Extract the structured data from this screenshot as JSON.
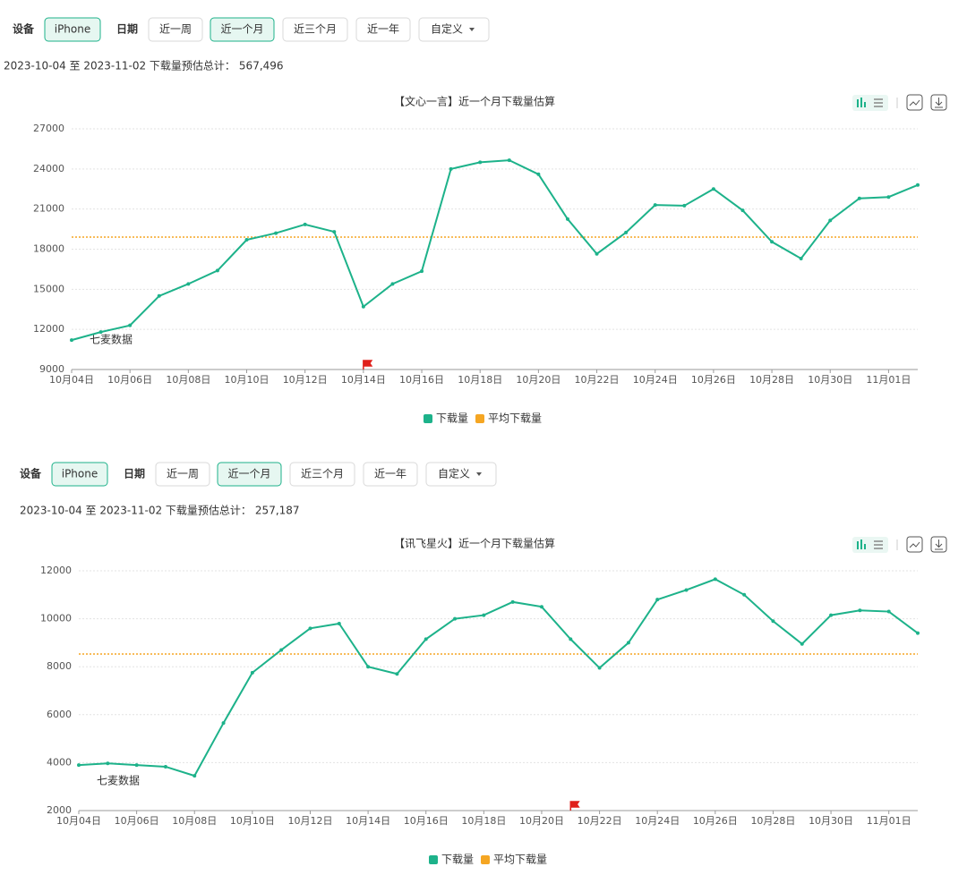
{
  "panels": [
    {
      "filters": {
        "device_label": "设备",
        "device": "iPhone",
        "date_label": "日期",
        "date_options": [
          "近一周",
          "近一个月",
          "近三个月",
          "近一年",
          "自定义"
        ],
        "selected_index": 1
      },
      "summary": {
        "range": "2023-10-04 至 2023-11-02 下载量预估总计：",
        "total": "567,496"
      }
    },
    {
      "filters": {
        "device_label": "设备",
        "device": "iPhone",
        "date_label": "日期",
        "date_options": [
          "近一周",
          "近一个月",
          "近三个月",
          "近一年",
          "自定义"
        ],
        "selected_index": 1
      },
      "summary": {
        "range": "2023-10-04 至 2023-11-02 下载量预估总计：",
        "total": "257,187"
      }
    }
  ],
  "chart_data": [
    {
      "type": "line",
      "title": "【文心一言】近一个月下载量估算",
      "watermark": "七麦数据",
      "categories": [
        "10月04日",
        null,
        "10月06日",
        null,
        "10月08日",
        null,
        "10月10日",
        null,
        "10月12日",
        null,
        "10月14日",
        null,
        "10月16日",
        null,
        "10月18日",
        null,
        "10月20日",
        null,
        "10月22日",
        null,
        "10月24日",
        null,
        "10月26日",
        null,
        "10月28日",
        null,
        "10月30日",
        null,
        "11月01日",
        null
      ],
      "series": [
        {
          "name": "下载量",
          "color": "#1db28a",
          "values": [
            11200,
            11800,
            12300,
            14500,
            15400,
            16400,
            18700,
            19200,
            19850,
            19300,
            13700,
            15400,
            16350,
            24000,
            24500,
            24650,
            23600,
            20250,
            17650,
            19250,
            21300,
            21250,
            22500,
            20900,
            18550,
            17300,
            20150,
            21800,
            21900,
            22800
          ]
        }
      ],
      "average_line": {
        "name": "平均下载量",
        "color": "#f5a623",
        "value": 18900
      },
      "ylim": [
        9000,
        27000
      ],
      "yticks": [
        9000,
        12000,
        15000,
        18000,
        21000,
        24000,
        27000
      ],
      "grid": true
    },
    {
      "type": "line",
      "title": "【讯飞星火】近一个月下载量估算",
      "watermark": "七麦数据",
      "categories": [
        "10月04日",
        null,
        "10月06日",
        null,
        "10月08日",
        null,
        "10月10日",
        null,
        "10月12日",
        null,
        "10月14日",
        null,
        "10月16日",
        null,
        "10月18日",
        null,
        "10月20日",
        null,
        "10月22日",
        null,
        "10月24日",
        null,
        "10月26日",
        null,
        "10月28日",
        null,
        "10月30日",
        null,
        "11月01日",
        null
      ],
      "series": [
        {
          "name": "下载量",
          "color": "#1db28a",
          "values": [
            3900,
            3970,
            3900,
            3830,
            3450,
            5650,
            7750,
            8700,
            9600,
            9800,
            8000,
            7700,
            9150,
            10000,
            10150,
            10700,
            10500,
            9150,
            7950,
            9000,
            10800,
            11200,
            11650,
            11000,
            9900,
            8950,
            10150,
            10350,
            10300,
            9400
          ]
        }
      ],
      "average_line": {
        "name": "平均下载量",
        "color": "#f5a623",
        "value": 8530
      },
      "ylim": [
        2000,
        12000
      ],
      "yticks": [
        2000,
        4000,
        6000,
        8000,
        10000,
        12000
      ],
      "grid": true
    }
  ]
}
